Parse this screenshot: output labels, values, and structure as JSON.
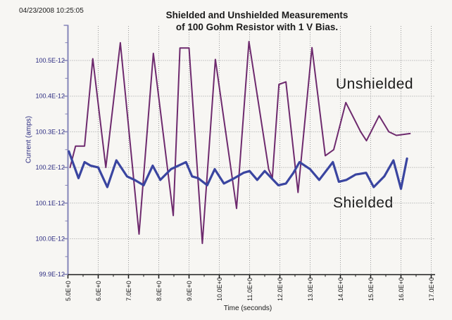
{
  "header": {
    "timestamp": "04/23/2008 10:25:05"
  },
  "colors": {
    "text_black": "#1a1a1a",
    "axis_label_navy": "#2b2b80",
    "y_axis_line": "#8585b8",
    "x_axis_line": "#1a1a1a",
    "gridline": "#9a9a9a",
    "unshielded_line": "#6e2a6e",
    "shielded_line": "#3a45a0",
    "background": "#f7f6f3"
  },
  "chart_data": {
    "type": "line",
    "title": "Shielded and Unshielded Measurements",
    "subtitle": "of 100 Gohm Resistor with 1 V Bias.",
    "xlabel": "Time (seconds)",
    "ylabel": "Current (amps)",
    "x_axis": {
      "min": 5,
      "max": 17,
      "major_step": 1,
      "minor_step": 0.5,
      "tick_values": [
        5,
        6,
        7,
        8,
        9,
        10,
        11,
        12,
        13,
        14,
        15,
        16,
        17
      ],
      "tick_labels": [
        "5.0E+0",
        "6.0E+0",
        "7.0E+0",
        "8.0E+0",
        "9.0E+0",
        "10.0E+0",
        "11.0E+0",
        "12.0E+0",
        "13.0E+0",
        "14.0E+0",
        "15.0E+0",
        "16.0E+0",
        "17.0E+0"
      ]
    },
    "y_axis": {
      "unit_scale": "E-12",
      "min_pA": 99.9,
      "max_pA": 100.6,
      "major_step_pA": 0.1,
      "minor_step_pA": 0.05,
      "tick_values_pA": [
        100.5,
        100.4,
        100.3,
        100.2,
        100.1,
        100.0,
        99.9
      ],
      "tick_labels": [
        "100.5E-12",
        "100.4E-12",
        "100.3E-12",
        "100.2E-12",
        "100.1E-12",
        "100.0E-12",
        "99.9E-12"
      ]
    },
    "grid": "dotted",
    "legend_position": "inline-annotations",
    "annotations": [
      {
        "text": "Unshielded"
      },
      {
        "text": "Shielded"
      }
    ],
    "series": [
      {
        "name": "Unshielded",
        "color": "#6e2a6e",
        "width": 2,
        "points_t_pA": [
          [
            5.07,
            100.2
          ],
          [
            5.25,
            100.26
          ],
          [
            5.55,
            100.26
          ],
          [
            5.82,
            100.505
          ],
          [
            6.25,
            100.2
          ],
          [
            6.73,
            100.55
          ],
          [
            7.35,
            100.013
          ],
          [
            7.82,
            100.52
          ],
          [
            8.48,
            100.065
          ],
          [
            8.7,
            100.535
          ],
          [
            9.0,
            100.535
          ],
          [
            9.44,
            99.987
          ],
          [
            9.87,
            100.503
          ],
          [
            10.57,
            100.085
          ],
          [
            10.98,
            100.553
          ],
          [
            11.63,
            100.195
          ],
          [
            11.75,
            100.17
          ],
          [
            11.97,
            100.433
          ],
          [
            12.2,
            100.44
          ],
          [
            12.6,
            100.13
          ],
          [
            13.06,
            100.536
          ],
          [
            13.5,
            100.233
          ],
          [
            13.78,
            100.25
          ],
          [
            14.18,
            100.382
          ],
          [
            14.43,
            100.34
          ],
          [
            14.67,
            100.3
          ],
          [
            14.86,
            100.275
          ],
          [
            15.28,
            100.345
          ],
          [
            15.6,
            100.3
          ],
          [
            15.85,
            100.29
          ],
          [
            16.3,
            100.295
          ]
        ]
      },
      {
        "name": "Shielded",
        "color": "#3a45a0",
        "width": 3.2,
        "points_t_pA": [
          [
            5.03,
            100.245
          ],
          [
            5.35,
            100.17
          ],
          [
            5.55,
            100.215
          ],
          [
            5.75,
            100.205
          ],
          [
            6.0,
            100.2
          ],
          [
            6.3,
            100.145
          ],
          [
            6.6,
            100.22
          ],
          [
            6.95,
            100.175
          ],
          [
            7.2,
            100.165
          ],
          [
            7.5,
            100.15
          ],
          [
            7.8,
            100.205
          ],
          [
            8.05,
            100.165
          ],
          [
            8.4,
            100.195
          ],
          [
            8.9,
            100.215
          ],
          [
            9.1,
            100.175
          ],
          [
            9.3,
            100.17
          ],
          [
            9.6,
            100.15
          ],
          [
            9.85,
            100.195
          ],
          [
            10.15,
            100.155
          ],
          [
            10.5,
            100.17
          ],
          [
            10.8,
            100.185
          ],
          [
            11.0,
            100.19
          ],
          [
            11.25,
            100.165
          ],
          [
            11.5,
            100.19
          ],
          [
            11.95,
            100.15
          ],
          [
            12.2,
            100.155
          ],
          [
            12.45,
            100.185
          ],
          [
            12.65,
            100.215
          ],
          [
            13.0,
            100.195
          ],
          [
            13.3,
            100.165
          ],
          [
            13.75,
            100.215
          ],
          [
            13.95,
            100.16
          ],
          [
            14.2,
            100.165
          ],
          [
            14.5,
            100.18
          ],
          [
            14.85,
            100.185
          ],
          [
            15.1,
            100.145
          ],
          [
            15.45,
            100.175
          ],
          [
            15.75,
            100.22
          ],
          [
            16.0,
            100.14
          ],
          [
            16.2,
            100.225
          ]
        ]
      }
    ]
  }
}
